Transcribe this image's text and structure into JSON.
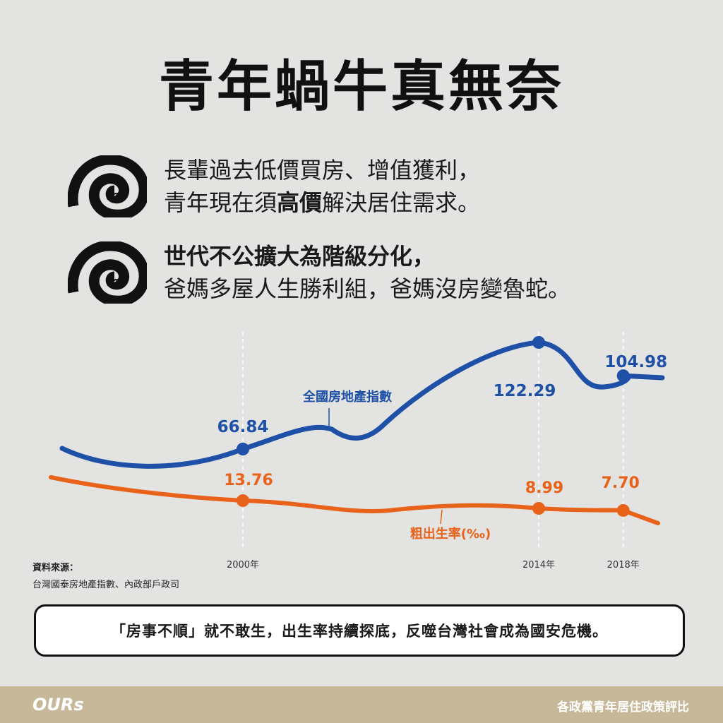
{
  "title": "青年蝸牛真無奈",
  "points": [
    {
      "lines": [
        [
          {
            "text": "長輩過去低價買房、增值獲利，",
            "bold": false
          }
        ],
        [
          {
            "text": "青年現在須",
            "bold": false
          },
          {
            "text": "高價",
            "bold": true
          },
          {
            "text": "解決居住需求。",
            "bold": false
          }
        ]
      ]
    },
    {
      "lines": [
        [
          {
            "text": "世代不公擴大為階級分化，",
            "bold": true
          }
        ],
        [
          {
            "text": "爸媽多屋人生勝利組，爸媽沒房變魯蛇。",
            "bold": false
          }
        ]
      ]
    }
  ],
  "chart_data": {
    "type": "line",
    "x": [
      "2000年",
      "2014年",
      "2018年"
    ],
    "series": [
      {
        "name": "全國房地產指數",
        "color": "#1d50a6",
        "points": [
          {
            "x": "2000年",
            "value": 66.84
          },
          {
            "x": "2014年",
            "value": 122.29
          },
          {
            "x": "2018年",
            "value": 104.98
          }
        ],
        "labels": [
          "66.84",
          "122.29",
          "104.98"
        ]
      },
      {
        "name": "粗出生率(‰)",
        "color": "#e8621a",
        "points": [
          {
            "x": "2000年",
            "value": 13.76
          },
          {
            "x": "2014年",
            "value": 8.99
          },
          {
            "x": "2018年",
            "value": 7.7
          }
        ],
        "labels": [
          "13.76",
          "8.99",
          "7.70"
        ]
      }
    ],
    "grid": "vertical dashed lines at labelled years"
  },
  "source": {
    "heading": "資料來源：",
    "text": "台灣國泰房地產指數、內政部戶政司"
  },
  "callout": "「房事不順」就不敢生，出生率持續探底，反噬台灣社會成為國安危機。",
  "footer": {
    "brand": "OURs",
    "caption": "各政黨青年居住政策評比"
  },
  "colors": {
    "background": "#e3e3e1",
    "footer": "#c6b899",
    "house_index": "#1d50a6",
    "birth_rate": "#e8621a"
  },
  "icons": [
    "snail-shell-icon",
    "snail-shell-icon"
  ]
}
